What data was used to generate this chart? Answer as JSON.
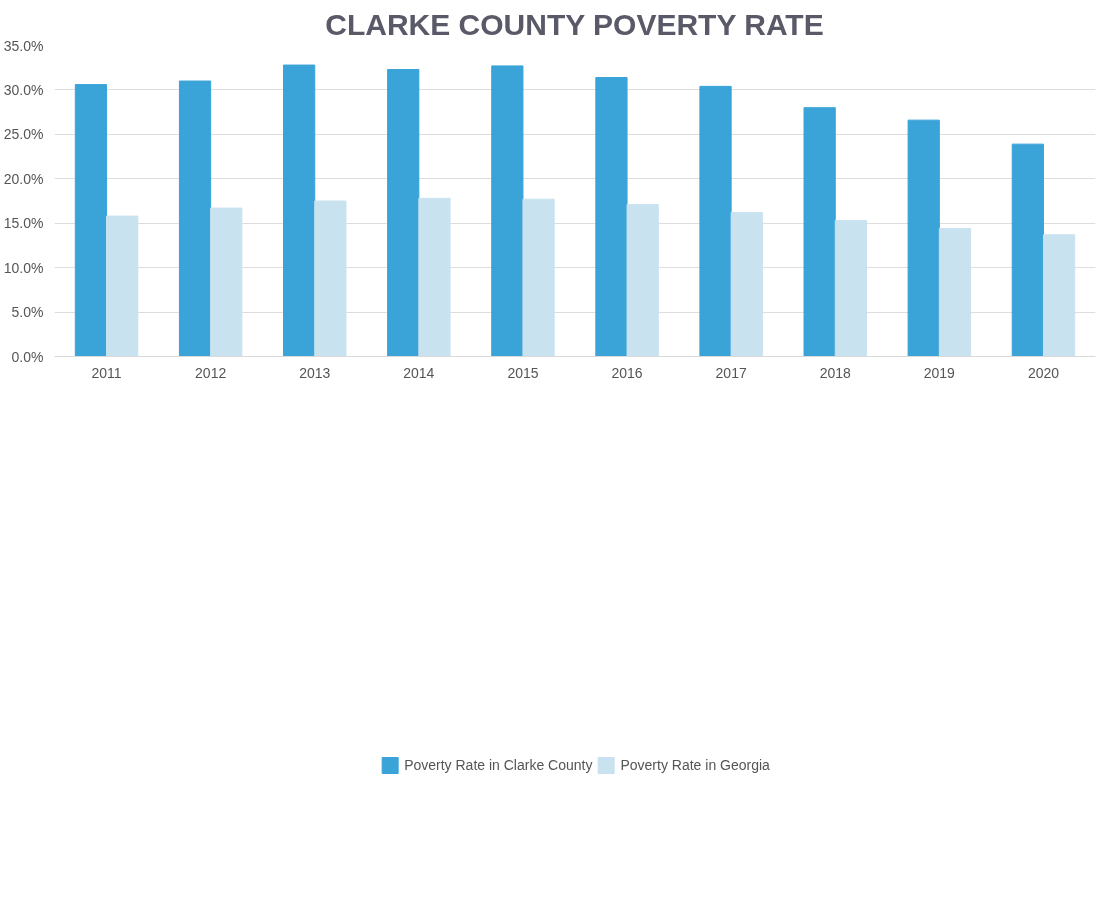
{
  "chart_data": {
    "type": "bar",
    "title": "CLARKE COUNTY POVERTY RATE",
    "categories": [
      "2011",
      "2012",
      "2013",
      "2014",
      "2015",
      "2016",
      "2017",
      "2018",
      "2019",
      "2020"
    ],
    "series": [
      {
        "name": "Poverty Rate in Clarke County",
        "color": "#3aa3d8",
        "values": [
          30.6,
          31.0,
          32.8,
          32.3,
          32.7,
          31.4,
          30.4,
          28.0,
          26.6,
          23.9
        ]
      },
      {
        "name": "Poverty Rate in Georgia",
        "color": "#c9e2f0",
        "values": [
          15.8,
          16.7,
          17.5,
          17.8,
          17.7,
          17.1,
          16.2,
          15.3,
          14.4,
          13.7
        ]
      }
    ],
    "ylim": [
      0,
      35
    ],
    "yticks": [
      {
        "value": 0,
        "label": "0.0%"
      },
      {
        "value": 5,
        "label": "5.0%"
      },
      {
        "value": 10,
        "label": "10.0%"
      },
      {
        "value": 15,
        "label": "15.0%"
      },
      {
        "value": 20,
        "label": "20.0%"
      },
      {
        "value": 25,
        "label": "25.0%"
      },
      {
        "value": 30,
        "label": "30.0%"
      },
      {
        "value": 35,
        "label": "35.0%"
      }
    ],
    "grid": "y",
    "legend": "bottom"
  }
}
